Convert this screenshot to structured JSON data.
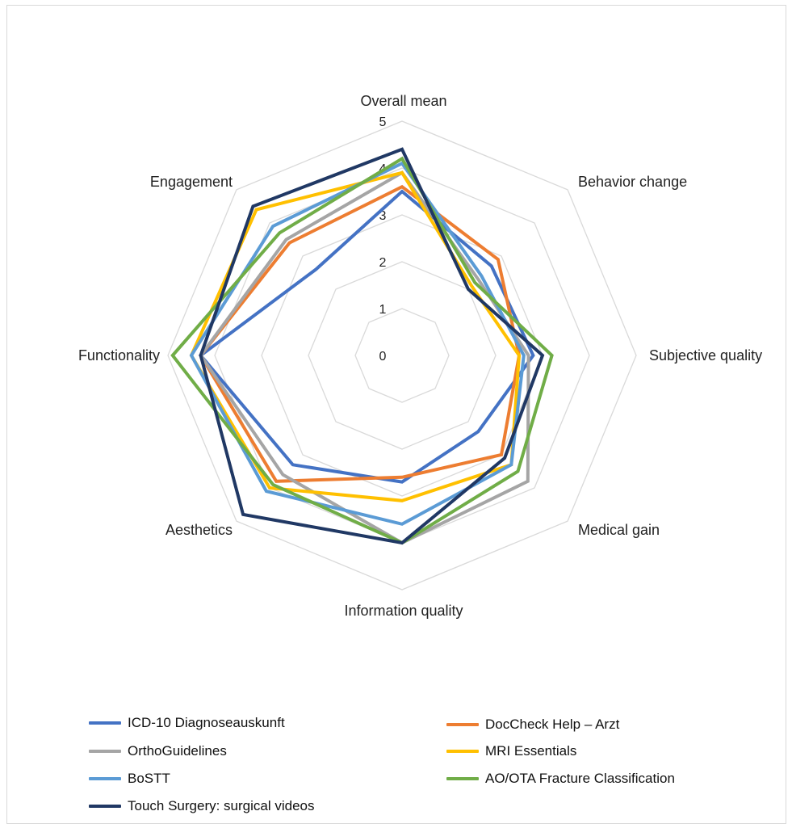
{
  "chart_data": {
    "type": "radar",
    "axes": [
      "Overall mean",
      "Behavior change",
      "Subjective quality",
      "Medical gain",
      "Information quality",
      "Aesthetics",
      "Functionality",
      "Engagement"
    ],
    "rlim": [
      0,
      5
    ],
    "ticks": [
      "0",
      "1",
      "2",
      "3",
      "4",
      "5"
    ],
    "grid": true,
    "legend_position": "bottom",
    "series": [
      {
        "name": "ICD-10 Diagnoseauskunft",
        "color": "#4472C4",
        "values": [
          3.5,
          2.7,
          2.8,
          2.3,
          2.7,
          3.3,
          4.3,
          2.6
        ]
      },
      {
        "name": "DocCheck Help – Arzt",
        "color": "#ED7D31",
        "values": [
          3.6,
          2.9,
          2.5,
          3.0,
          2.6,
          3.8,
          4.3,
          3.4
        ]
      },
      {
        "name": "OrthoGuidelines",
        "color": "#A5A5A5",
        "values": [
          3.9,
          2.3,
          2.7,
          3.8,
          4.0,
          3.6,
          4.3,
          3.5
        ]
      },
      {
        "name": "MRI Essentials",
        "color": "#FFC000",
        "values": [
          3.9,
          2.1,
          2.5,
          3.3,
          3.1,
          4.0,
          4.5,
          4.4
        ]
      },
      {
        "name": "BoSTT",
        "color": "#5B9BD5",
        "values": [
          4.1,
          2.4,
          2.6,
          3.3,
          3.6,
          4.1,
          4.5,
          3.9
        ]
      },
      {
        "name": "AO/OTA Fracture Classification",
        "color": "#70AD47",
        "values": [
          4.2,
          2.2,
          3.2,
          3.5,
          4.0,
          3.9,
          4.9,
          3.7
        ]
      },
      {
        "name": "Touch Surgery: surgical videos",
        "color": "#203864",
        "values": [
          4.4,
          2.0,
          3.0,
          3.1,
          4.0,
          4.8,
          4.3,
          4.5
        ]
      }
    ]
  }
}
